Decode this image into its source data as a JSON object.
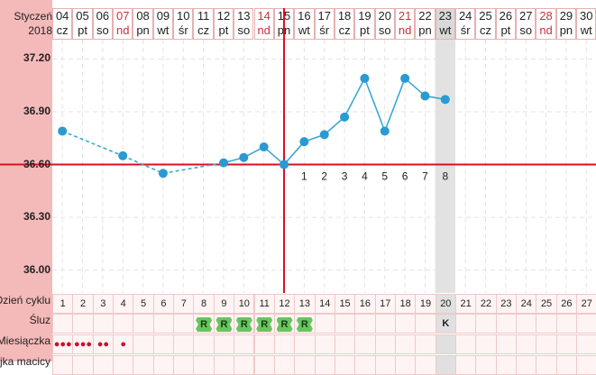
{
  "header": {
    "month": "Styczeń",
    "year": "2018"
  },
  "days": [
    {
      "num": "04",
      "dow": "cz",
      "weekend": false
    },
    {
      "num": "05",
      "dow": "pt",
      "weekend": false
    },
    {
      "num": "06",
      "dow": "so",
      "weekend": false
    },
    {
      "num": "07",
      "dow": "nd",
      "weekend": true
    },
    {
      "num": "08",
      "dow": "pn",
      "weekend": false
    },
    {
      "num": "09",
      "dow": "wt",
      "weekend": false
    },
    {
      "num": "10",
      "dow": "śr",
      "weekend": false
    },
    {
      "num": "11",
      "dow": "cz",
      "weekend": false
    },
    {
      "num": "12",
      "dow": "pt",
      "weekend": false
    },
    {
      "num": "13",
      "dow": "so",
      "weekend": false
    },
    {
      "num": "14",
      "dow": "nd",
      "weekend": true
    },
    {
      "num": "15",
      "dow": "pn",
      "weekend": false
    },
    {
      "num": "16",
      "dow": "wt",
      "weekend": false
    },
    {
      "num": "17",
      "dow": "śr",
      "weekend": false
    },
    {
      "num": "18",
      "dow": "cz",
      "weekend": false
    },
    {
      "num": "19",
      "dow": "pt",
      "weekend": false
    },
    {
      "num": "20",
      "dow": "so",
      "weekend": false
    },
    {
      "num": "21",
      "dow": "nd",
      "weekend": true
    },
    {
      "num": "22",
      "dow": "pn",
      "weekend": false
    },
    {
      "num": "23",
      "dow": "wt",
      "weekend": false
    },
    {
      "num": "24",
      "dow": "śr",
      "weekend": false
    },
    {
      "num": "25",
      "dow": "cz",
      "weekend": false
    },
    {
      "num": "26",
      "dow": "pt",
      "weekend": false
    },
    {
      "num": "27",
      "dow": "so",
      "weekend": false
    },
    {
      "num": "28",
      "dow": "nd",
      "weekend": true
    },
    {
      "num": "29",
      "dow": "pn",
      "weekend": false
    },
    {
      "num": "30",
      "dow": "wt",
      "weekend": false
    }
  ],
  "current_day_index": 19,
  "rows": {
    "cycle_day_label": "Dzień cyklu",
    "mucus_label": "Śluz",
    "period_label": "Miesiączka",
    "fourth_label": "Szyjka macicy",
    "cycle_days": [
      "1",
      "2",
      "3",
      "4",
      "5",
      "6",
      "7",
      "8",
      "9",
      "10",
      "11",
      "12",
      "13",
      "14",
      "15",
      "16",
      "17",
      "18",
      "19",
      "20",
      "21",
      "22",
      "23",
      "24",
      "25",
      "26",
      "27"
    ],
    "mucus": [
      "",
      "",
      "",
      "",
      "",
      "",
      "",
      "R",
      "R",
      "R",
      "R",
      "R",
      "R",
      "",
      "",
      "",
      "",
      "",
      "",
      "K",
      "",
      "",
      "",
      "",
      "",
      "",
      ""
    ],
    "period_drops": [
      3,
      3,
      2,
      1,
      0,
      0,
      0,
      0,
      0,
      0,
      0,
      0,
      0,
      0,
      0,
      0,
      0,
      0,
      0,
      0,
      0,
      0,
      0,
      0,
      0,
      0,
      0
    ],
    "period_drop_glyph": "●"
  },
  "chart_data": {
    "type": "line",
    "x": [
      "04",
      "05",
      "06",
      "07",
      "08",
      "09",
      "10",
      "11",
      "12",
      "13",
      "14",
      "15",
      "16",
      "17",
      "18",
      "19",
      "20",
      "21",
      "22",
      "23"
    ],
    "temperatures": [
      {
        "day_index": 0,
        "temp": 36.79
      },
      {
        "day_index": 3,
        "temp": 36.65
      },
      {
        "day_index": 5,
        "temp": 36.55
      },
      {
        "day_index": 8,
        "temp": 36.61
      },
      {
        "day_index": 9,
        "temp": 36.64
      },
      {
        "day_index": 10,
        "temp": 36.7
      },
      {
        "day_index": 11,
        "temp": 36.6
      },
      {
        "day_index": 12,
        "temp": 36.73
      },
      {
        "day_index": 13,
        "temp": 36.77
      },
      {
        "day_index": 14,
        "temp": 36.87
      },
      {
        "day_index": 15,
        "temp": 37.09
      },
      {
        "day_index": 16,
        "temp": 36.79
      },
      {
        "day_index": 17,
        "temp": 37.09
      },
      {
        "day_index": 18,
        "temp": 36.99
      },
      {
        "day_index": 19,
        "temp": 36.97
      }
    ],
    "dashed_until_index": 8,
    "yticks": [
      "37.20",
      "36.90",
      "36.60",
      "36.30",
      "36.00"
    ],
    "ylim": [
      35.87,
      37.31
    ],
    "coverline": 36.6,
    "ovulation_marker_day_index": 11,
    "post_ovulation_labels": [
      "1",
      "2",
      "3",
      "4",
      "5",
      "6",
      "7",
      "8"
    ],
    "post_ovulation_start_index": 12,
    "colors": {
      "line": "#3aa9d3",
      "point": "#2a9ad0",
      "coverline": "#d90f21",
      "grid": "#e3e3e3"
    },
    "grid": true
  }
}
